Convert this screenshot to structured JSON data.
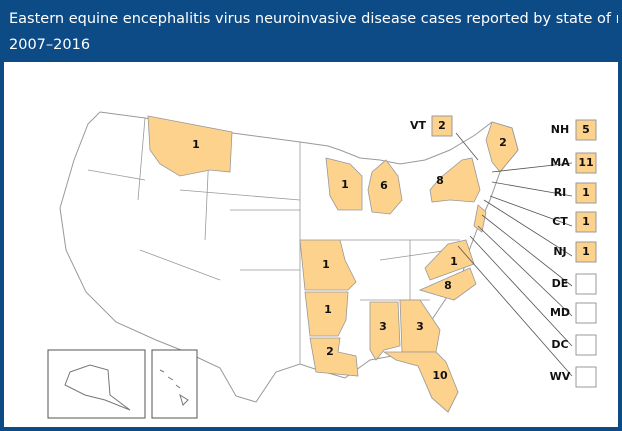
{
  "header": {
    "title": "Eastern equine encephalitis virus neuroinvasive disease cases reported by state of residen",
    "subtitle": "2007–2016"
  },
  "map_values": [
    1,
    2,
    8,
    1,
    6,
    1,
    1,
    2,
    3,
    3,
    10,
    8,
    1
  ],
  "callouts": [
    {
      "label": "VT",
      "value": 2
    },
    {
      "label": "NH",
      "value": 5
    },
    {
      "label": "MA",
      "value": 11
    },
    {
      "label": "RI",
      "value": 1
    },
    {
      "label": "CT",
      "value": 1
    },
    {
      "label": "NJ",
      "value": 1
    },
    {
      "label": "DE",
      "value": null
    },
    {
      "label": "MD",
      "value": null
    },
    {
      "label": "DC",
      "value": null
    },
    {
      "label": "WV",
      "value": null
    }
  ],
  "fill_color": "#fcd28c"
}
